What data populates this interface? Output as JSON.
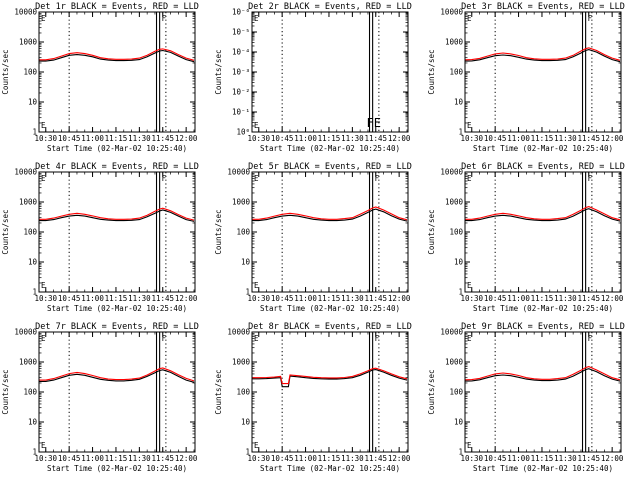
{
  "chart_data": [
    {
      "type": "line",
      "title": "Det 1r BLACK = Events, RED = LLD",
      "xlabel": "Start Time (02-Mar-02 10:25:40)",
      "ylabel": "Counts/sec",
      "ylim": [
        1,
        10000
      ],
      "yscale": "log",
      "ytick_labels": [
        "10000",
        "1000",
        "100",
        "10",
        "1"
      ],
      "x_ticks": [
        "10:30",
        "10:45",
        "11:00",
        "11:15",
        "11:30",
        "11:45",
        "12:00"
      ],
      "x_range": [
        "10:25:40",
        "12:05:40"
      ],
      "markers": [
        "10:45",
        "11:41",
        "11:43",
        "11:47"
      ],
      "corner_labels": [
        "E",
        "F"
      ],
      "grid": false,
      "x": [
        "10:26",
        "10:30",
        "10:35",
        "10:40",
        "10:45",
        "10:50",
        "10:55",
        "11:00",
        "11:05",
        "11:10",
        "11:15",
        "11:20",
        "11:25",
        "11:30",
        "11:35",
        "11:40",
        "11:43",
        "11:45",
        "11:50",
        "11:55",
        "12:00",
        "12:05"
      ],
      "series": [
        {
          "name": "BLACK = Events",
          "color": "#000000",
          "values": [
            230,
            230,
            250,
            300,
            360,
            380,
            360,
            320,
            270,
            250,
            240,
            240,
            245,
            260,
            320,
            430,
            500,
            520,
            450,
            340,
            260,
            220
          ]
        },
        {
          "name": "RED = LLD",
          "color": "#ff0000",
          "values": [
            255,
            255,
            280,
            340,
            410,
            440,
            410,
            360,
            300,
            275,
            265,
            265,
            270,
            290,
            360,
            490,
            570,
            590,
            510,
            380,
            290,
            245
          ]
        }
      ]
    },
    {
      "type": "line",
      "title": "Det 2r BLACK = Events, RED = LLD",
      "xlabel": "Start Time (02-Mar-02 10:25:40)",
      "ylabel": "Counts/sec",
      "ylim": [
        1,
        1e-06
      ],
      "yscale": "log",
      "ytick_labels": [
        "10⁻⁶",
        "10⁻⁵",
        "10⁻⁴",
        "10⁻³",
        "10⁻²",
        "10⁻¹",
        "10⁰"
      ],
      "x_ticks": [
        "10:30",
        "10:45",
        "11:00",
        "11:15",
        "11:30",
        "11:45",
        "12:00"
      ],
      "x_range": [
        "10:25:40",
        "12:05:40"
      ],
      "markers": [
        "10:45",
        "11:41",
        "11:43",
        "11:47"
      ],
      "corner_labels": [
        "E",
        "FE"
      ],
      "grid": false,
      "x": [],
      "series": []
    },
    {
      "type": "line",
      "title": "Det 3r BLACK = Events, RED = LLD",
      "xlabel": "Start Time (02-Mar-02 10:25:40)",
      "ylabel": "Counts/sec",
      "ylim": [
        1,
        10000
      ],
      "yscale": "log",
      "ytick_labels": [
        "10000",
        "1000",
        "100",
        "10",
        "1"
      ],
      "x_ticks": [
        "10:30",
        "10:45",
        "11:00",
        "11:15",
        "11:30",
        "11:45",
        "12:00"
      ],
      "x_range": [
        "10:25:40",
        "12:05:40"
      ],
      "markers": [
        "10:45",
        "11:41",
        "11:43",
        "11:47"
      ],
      "corner_labels": [
        "E",
        "F"
      ],
      "grid": false,
      "x": [
        "10:26",
        "10:30",
        "10:35",
        "10:40",
        "10:45",
        "10:50",
        "10:55",
        "11:00",
        "11:05",
        "11:10",
        "11:15",
        "11:20",
        "11:25",
        "11:30",
        "11:35",
        "11:40",
        "11:43",
        "11:45",
        "11:50",
        "11:55",
        "12:00",
        "12:05"
      ],
      "series": [
        {
          "name": "BLACK = Events",
          "color": "#000000",
          "values": [
            230,
            235,
            255,
            300,
            350,
            370,
            350,
            310,
            270,
            250,
            240,
            240,
            245,
            260,
            320,
            430,
            520,
            560,
            460,
            340,
            260,
            220
          ]
        },
        {
          "name": "RED = LLD",
          "color": "#ff0000",
          "values": [
            255,
            260,
            285,
            340,
            400,
            430,
            400,
            355,
            300,
            275,
            265,
            265,
            270,
            290,
            360,
            500,
            600,
            640,
            520,
            380,
            290,
            245
          ]
        }
      ]
    },
    {
      "type": "line",
      "title": "Det 4r BLACK = Events, RED = LLD",
      "xlabel": "Start Time (02-Mar-02 10:25:40)",
      "ylabel": "Counts/sec",
      "ylim": [
        1,
        10000
      ],
      "yscale": "log",
      "ytick_labels": [
        "10000",
        "1000",
        "100",
        "10",
        "1"
      ],
      "x_ticks": [
        "10:30",
        "10:45",
        "11:00",
        "11:15",
        "11:30",
        "11:45",
        "12:00"
      ],
      "x_range": [
        "10:25:40",
        "12:05:40"
      ],
      "markers": [
        "10:45",
        "11:41",
        "11:43",
        "11:47"
      ],
      "corner_labels": [
        "E",
        "F"
      ],
      "grid": false,
      "x": [
        "10:26",
        "10:30",
        "10:35",
        "10:40",
        "10:45",
        "10:50",
        "10:55",
        "11:00",
        "11:05",
        "11:10",
        "11:15",
        "11:20",
        "11:25",
        "11:30",
        "11:35",
        "11:40",
        "11:43",
        "11:45",
        "11:50",
        "11:55",
        "12:00",
        "12:05"
      ],
      "series": [
        {
          "name": "BLACK = Events",
          "color": "#000000",
          "values": [
            240,
            240,
            260,
            300,
            340,
            360,
            340,
            300,
            265,
            250,
            240,
            240,
            245,
            260,
            320,
            420,
            500,
            540,
            450,
            340,
            260,
            225
          ]
        },
        {
          "name": "RED = LLD",
          "color": "#ff0000",
          "values": [
            265,
            265,
            290,
            340,
            390,
            420,
            390,
            345,
            300,
            275,
            265,
            265,
            270,
            290,
            360,
            490,
            580,
            620,
            510,
            380,
            290,
            250
          ]
        }
      ]
    },
    {
      "type": "line",
      "title": "Det 5r BLACK = Events, RED = LLD",
      "xlabel": "Start Time (02-Mar-02 10:25:40)",
      "ylabel": "Counts/sec",
      "ylim": [
        1,
        10000
      ],
      "yscale": "log",
      "ytick_labels": [
        "10000",
        "1000",
        "100",
        "10",
        "1"
      ],
      "x_ticks": [
        "10:30",
        "10:45",
        "11:00",
        "11:15",
        "11:30",
        "11:45",
        "12:00"
      ],
      "x_range": [
        "10:25:40",
        "12:05:40"
      ],
      "markers": [
        "10:45",
        "11:41",
        "11:43",
        "11:47"
      ],
      "corner_labels": [
        "E",
        "F"
      ],
      "grid": false,
      "x": [
        "10:26",
        "10:30",
        "10:35",
        "10:40",
        "10:45",
        "10:50",
        "10:55",
        "11:00",
        "11:05",
        "11:10",
        "11:15",
        "11:20",
        "11:25",
        "11:30",
        "11:35",
        "11:40",
        "11:43",
        "11:45",
        "11:50",
        "11:55",
        "12:00",
        "12:05"
      ],
      "series": [
        {
          "name": "BLACK = Events",
          "color": "#000000",
          "values": [
            240,
            240,
            260,
            300,
            340,
            360,
            340,
            300,
            265,
            250,
            240,
            240,
            250,
            270,
            340,
            450,
            540,
            580,
            470,
            350,
            270,
            230
          ]
        },
        {
          "name": "RED = LLD",
          "color": "#ff0000",
          "values": [
            265,
            265,
            290,
            340,
            390,
            420,
            390,
            345,
            300,
            275,
            265,
            265,
            280,
            300,
            390,
            520,
            630,
            680,
            540,
            400,
            300,
            255
          ]
        }
      ]
    },
    {
      "type": "line",
      "title": "Det 6r BLACK = Events, RED = LLD",
      "xlabel": "Start Time (02-Mar-02 10:25:40)",
      "ylabel": "Counts/sec",
      "ylim": [
        1,
        10000
      ],
      "yscale": "log",
      "ytick_labels": [
        "10000",
        "1000",
        "100",
        "10",
        "1"
      ],
      "x_ticks": [
        "10:30",
        "10:45",
        "11:00",
        "11:15",
        "11:30",
        "11:45",
        "12:00"
      ],
      "x_range": [
        "10:25:40",
        "12:05:40"
      ],
      "markers": [
        "10:45",
        "11:41",
        "11:43",
        "11:47"
      ],
      "corner_labels": [
        "E",
        "F"
      ],
      "grid": false,
      "x": [
        "10:26",
        "10:30",
        "10:35",
        "10:40",
        "10:45",
        "10:50",
        "10:55",
        "11:00",
        "11:05",
        "11:10",
        "11:15",
        "11:20",
        "11:25",
        "11:30",
        "11:35",
        "11:40",
        "11:43",
        "11:45",
        "11:50",
        "11:55",
        "12:00",
        "12:05"
      ],
      "series": [
        {
          "name": "BLACK = Events",
          "color": "#000000",
          "values": [
            240,
            240,
            260,
            300,
            340,
            360,
            340,
            300,
            265,
            250,
            240,
            240,
            250,
            270,
            340,
            460,
            560,
            600,
            470,
            350,
            270,
            230
          ]
        },
        {
          "name": "RED = LLD",
          "color": "#ff0000",
          "values": [
            265,
            265,
            290,
            340,
            390,
            420,
            390,
            345,
            300,
            275,
            265,
            265,
            280,
            300,
            390,
            530,
            650,
            700,
            540,
            400,
            300,
            255
          ]
        }
      ]
    },
    {
      "type": "line",
      "title": "Det 7r BLACK = Events, RED = LLD",
      "xlabel": "Start Time (02-Mar-02 10:25:40)",
      "ylabel": "Counts/sec",
      "ylim": [
        1,
        10000
      ],
      "yscale": "log",
      "ytick_labels": [
        "10000",
        "1000",
        "100",
        "10",
        "1"
      ],
      "x_ticks": [
        "10:30",
        "10:45",
        "11:00",
        "11:15",
        "11:30",
        "11:45",
        "12:00"
      ],
      "x_range": [
        "10:25:40",
        "12:05:40"
      ],
      "markers": [
        "10:45",
        "11:41",
        "11:43",
        "11:47"
      ],
      "corner_labels": [
        "E",
        "F"
      ],
      "grid": false,
      "x": [
        "10:26",
        "10:30",
        "10:35",
        "10:40",
        "10:45",
        "10:50",
        "10:55",
        "11:00",
        "11:05",
        "11:10",
        "11:15",
        "11:20",
        "11:25",
        "11:30",
        "11:35",
        "11:40",
        "11:43",
        "11:45",
        "11:50",
        "11:55",
        "12:00",
        "12:05"
      ],
      "series": [
        {
          "name": "BLACK = Events",
          "color": "#000000",
          "values": [
            225,
            225,
            250,
            300,
            360,
            390,
            360,
            310,
            265,
            245,
            235,
            235,
            245,
            265,
            330,
            440,
            520,
            550,
            450,
            330,
            250,
            210
          ]
        },
        {
          "name": "RED = LLD",
          "color": "#ff0000",
          "values": [
            250,
            250,
            280,
            340,
            410,
            450,
            410,
            355,
            300,
            270,
            260,
            260,
            270,
            290,
            370,
            500,
            600,
            630,
            510,
            375,
            285,
            235
          ]
        }
      ]
    },
    {
      "type": "line",
      "title": "Det 8r BLACK = Events, RED = LLD",
      "xlabel": "Start Time (02-Mar-02 10:25:40)",
      "ylabel": "Counts/sec",
      "ylim": [
        1,
        10000
      ],
      "yscale": "log",
      "ytick_labels": [
        "10000",
        "1000",
        "100",
        "10",
        "1"
      ],
      "x_ticks": [
        "10:30",
        "10:45",
        "11:00",
        "11:15",
        "11:30",
        "11:45",
        "12:00"
      ],
      "x_range": [
        "10:25:40",
        "12:05:40"
      ],
      "markers": [
        "10:45",
        "11:41",
        "11:43",
        "11:47"
      ],
      "corner_labels": [
        "E",
        "F"
      ],
      "grid": false,
      "x": [
        "10:26",
        "10:30",
        "10:35",
        "10:40",
        "10:44",
        "10:45",
        "10:49",
        "10:50",
        "10:55",
        "11:00",
        "11:05",
        "11:10",
        "11:15",
        "11:20",
        "11:25",
        "11:30",
        "11:35",
        "11:40",
        "11:43",
        "11:45",
        "11:50",
        "11:55",
        "12:00",
        "12:05"
      ],
      "series": [
        {
          "name": "BLACK = Events",
          "color": "#000000",
          "values": [
            275,
            275,
            280,
            290,
            300,
            150,
            150,
            340,
            320,
            300,
            285,
            275,
            270,
            270,
            280,
            300,
            360,
            460,
            540,
            560,
            460,
            360,
            290,
            250
          ]
        },
        {
          "name": "RED = LLD",
          "color": "#ff0000",
          "values": [
            300,
            300,
            305,
            315,
            330,
            190,
            190,
            370,
            350,
            330,
            310,
            300,
            295,
            295,
            305,
            330,
            400,
            510,
            600,
            620,
            510,
            400,
            320,
            275
          ]
        }
      ]
    },
    {
      "type": "line",
      "title": "Det 9r BLACK = Events, RED = LLD",
      "xlabel": "Start Time (02-Mar-02 10:25:40)",
      "ylabel": "Counts/sec",
      "ylim": [
        1,
        10000
      ],
      "yscale": "log",
      "ytick_labels": [
        "10000",
        "1000",
        "100",
        "10",
        "1"
      ],
      "x_ticks": [
        "10:30",
        "10:45",
        "11:00",
        "11:15",
        "11:30",
        "11:45",
        "12:00"
      ],
      "x_range": [
        "10:25:40",
        "12:05:40"
      ],
      "markers": [
        "10:45",
        "11:41",
        "11:43",
        "11:47"
      ],
      "corner_labels": [
        "E",
        "F"
      ],
      "grid": false,
      "x": [
        "10:26",
        "10:30",
        "10:35",
        "10:40",
        "10:45",
        "10:50",
        "10:55",
        "11:00",
        "11:05",
        "11:10",
        "11:15",
        "11:20",
        "11:25",
        "11:30",
        "11:35",
        "11:40",
        "11:43",
        "11:45",
        "11:50",
        "11:55",
        "12:00",
        "12:05"
      ],
      "series": [
        {
          "name": "BLACK = Events",
          "color": "#000000",
          "values": [
            230,
            235,
            255,
            300,
            350,
            370,
            350,
            310,
            270,
            250,
            240,
            240,
            250,
            270,
            340,
            460,
            560,
            600,
            470,
            350,
            270,
            230
          ]
        },
        {
          "name": "RED = LLD",
          "color": "#ff0000",
          "values": [
            255,
            260,
            285,
            340,
            400,
            430,
            400,
            355,
            300,
            275,
            265,
            265,
            280,
            300,
            390,
            530,
            650,
            700,
            540,
            400,
            300,
            255
          ]
        }
      ]
    }
  ]
}
